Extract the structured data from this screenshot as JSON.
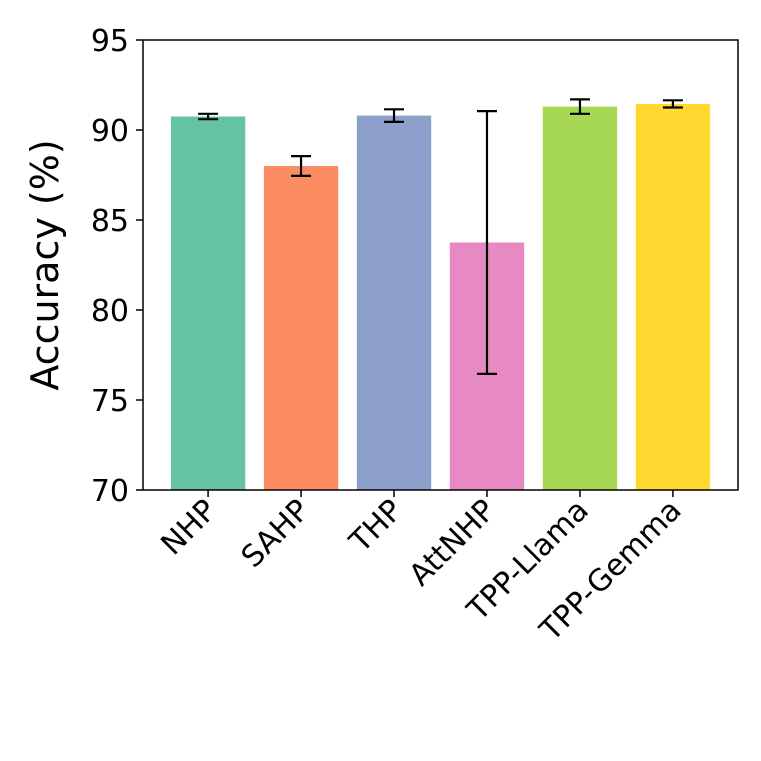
{
  "chart_data": {
    "type": "bar",
    "title": "",
    "xlabel": "",
    "ylabel": "Accuracy (%)",
    "ylim": [
      70,
      95
    ],
    "yticks": [
      70,
      75,
      80,
      85,
      90,
      95
    ],
    "grid": false,
    "categories": [
      "NHP",
      "SAHP",
      "THP",
      "AttNHP",
      "TPP-Llama",
      "TPP-Gemma"
    ],
    "values": [
      90.75,
      88.0,
      90.8,
      83.75,
      91.3,
      91.45
    ],
    "error": [
      0.15,
      0.55,
      0.35,
      7.3,
      0.4,
      0.2
    ],
    "colors": [
      "#66c2a5",
      "#fc8d62",
      "#8da0cb",
      "#e78ac3",
      "#a6d854",
      "#ffd92f"
    ]
  }
}
